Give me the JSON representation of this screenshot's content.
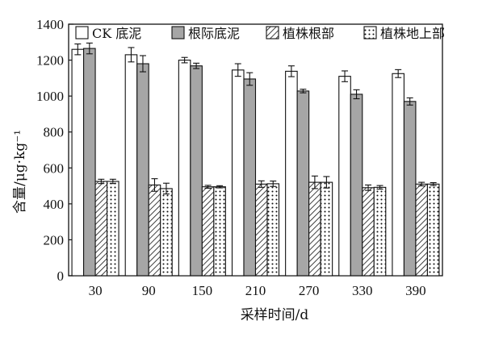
{
  "chart_data": {
    "type": "bar",
    "xlabel": "采样时间/d",
    "ylabel": "含量/μg·kg⁻¹",
    "ylim": [
      0,
      1400
    ],
    "yticks": [
      0,
      200,
      400,
      600,
      800,
      1000,
      1200,
      1400
    ],
    "categories": [
      "30",
      "90",
      "150",
      "210",
      "270",
      "330",
      "390"
    ],
    "legend_position": "top",
    "grid": false,
    "series": [
      {
        "name": "CK 底泥",
        "fill": "white",
        "values": [
          1260,
          1230,
          1200,
          1145,
          1138,
          1110,
          1125
        ],
        "errors": [
          30,
          40,
          15,
          35,
          30,
          30,
          22
        ]
      },
      {
        "name": "根际底泥",
        "fill": "gray",
        "values": [
          1265,
          1180,
          1168,
          1095,
          1028,
          1010,
          970
        ],
        "errors": [
          30,
          45,
          15,
          35,
          10,
          25,
          20
        ]
      },
      {
        "name": "植株根部",
        "fill": "hatch",
        "values": [
          525,
          505,
          495,
          510,
          520,
          490,
          510
        ],
        "errors": [
          12,
          35,
          8,
          18,
          35,
          15,
          10
        ]
      },
      {
        "name": "植株地上部",
        "fill": "dots",
        "values": [
          525,
          485,
          495,
          512,
          520,
          492,
          510
        ],
        "errors": [
          12,
          30,
          6,
          15,
          32,
          10,
          8
        ]
      }
    ]
  }
}
